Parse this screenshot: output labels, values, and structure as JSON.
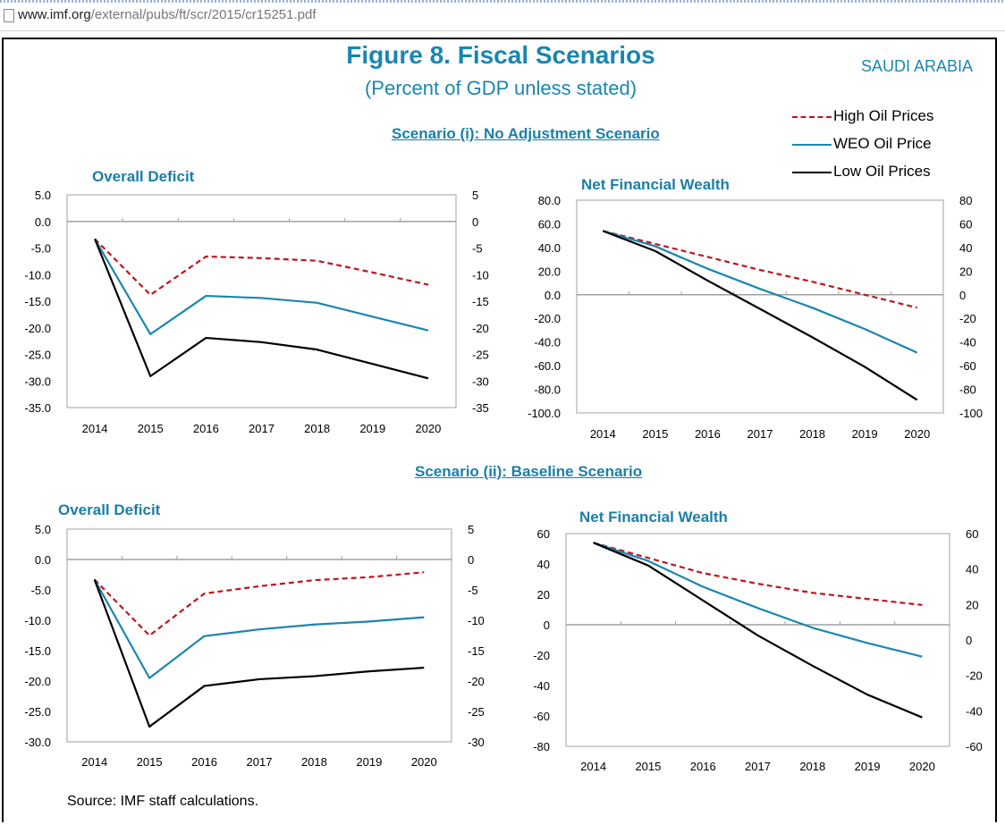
{
  "browser": {
    "url_host": "www.imf.org",
    "url_path": "/external/pubs/ft/scr/2015/cr15251.pdf"
  },
  "figure": {
    "title": "Figure 8. Fiscal Scenarios",
    "subtitle": "(Percent of GDP unless stated)",
    "country": "SAUDI ARABIA",
    "source": "Source: IMF staff calculations.",
    "scenario1_title": "Scenario (i): No Adjustment Scenario",
    "scenario2_title": "Scenario (ii):  Baseline Scenario"
  },
  "legend": [
    {
      "label": "High Oil Prices",
      "color": "#c0141c",
      "dash": true
    },
    {
      "label": "WEO Oil Price",
      "color": "#1a86b0",
      "dash": false
    },
    {
      "label": "Low Oil Prices",
      "color": "#000000",
      "dash": false
    }
  ],
  "chart_data": [
    {
      "id": "c1",
      "type": "line",
      "title": "Overall Deficit",
      "x": [
        "2014",
        "2015",
        "2016",
        "2017",
        "2018",
        "2019",
        "2020"
      ],
      "ylim": [
        -35,
        5
      ],
      "left_ticks": [
        "5.0",
        "0.0",
        "-5.0",
        "-10.0",
        "-15.0",
        "-20.0",
        "-25.0",
        "-30.0",
        "-35.0"
      ],
      "right_ticks": [
        "5",
        "0",
        "-5",
        "-10",
        "-15",
        "-20",
        "-25",
        "-30",
        "-35"
      ],
      "series": [
        {
          "name": "High Oil Prices",
          "color": "#c0141c",
          "dash": true,
          "values": [
            -3.3,
            -13.8,
            -6.6,
            -6.9,
            -7.4,
            -9.6,
            -11.9
          ]
        },
        {
          "name": "WEO Oil Price",
          "color": "#1a86b0",
          "dash": false,
          "values": [
            -3.3,
            -21.2,
            -14.0,
            -14.4,
            -15.3,
            -17.9,
            -20.5
          ]
        },
        {
          "name": "Low Oil Prices",
          "color": "#000000",
          "dash": false,
          "values": [
            -3.3,
            -29.1,
            -21.9,
            -22.7,
            -24.1,
            -26.8,
            -29.5
          ]
        }
      ]
    },
    {
      "id": "c2",
      "type": "line",
      "title": "Net Financial Wealth",
      "x": [
        "2014",
        "2015",
        "2016",
        "2017",
        "2018",
        "2019",
        "2020"
      ],
      "ylim": [
        -100,
        80
      ],
      "left_ticks": [
        "80.0",
        "60.0",
        "40.0",
        "20.0",
        "0.0",
        "-20.0",
        "-40.0",
        "-60.0",
        "-80.0",
        "-100.0"
      ],
      "right_ticks": [
        "80",
        "60",
        "40",
        "20",
        "0",
        "-20",
        "-40",
        "-60",
        "-80",
        "-100"
      ],
      "series": [
        {
          "name": "High Oil Prices",
          "color": "#c0141c",
          "dash": true,
          "values": [
            54,
            43,
            32,
            21,
            11,
            0,
            -11
          ]
        },
        {
          "name": "WEO Oil Price",
          "color": "#1a86b0",
          "dash": false,
          "values": [
            54,
            41,
            22,
            5,
            -11,
            -29,
            -49
          ]
        },
        {
          "name": "Low Oil Prices",
          "color": "#000000",
          "dash": false,
          "values": [
            54,
            37,
            12,
            -12,
            -36,
            -61,
            -89
          ]
        }
      ]
    },
    {
      "id": "c3",
      "type": "line",
      "title": "Overall Deficit",
      "x": [
        "2014",
        "2015",
        "2016",
        "2017",
        "2018",
        "2019",
        "2020"
      ],
      "ylim": [
        -30,
        5
      ],
      "left_ticks": [
        "5.0",
        "0.0",
        "-5.0",
        "-10.0",
        "-15.0",
        "-20.0",
        "-25.0",
        "-30.0"
      ],
      "right_ticks": [
        "5",
        "0",
        "-5",
        "-10",
        "-15",
        "-20",
        "-25",
        "-30"
      ],
      "series": [
        {
          "name": "High Oil Prices",
          "color": "#c0141c",
          "dash": true,
          "values": [
            -3.3,
            -12.5,
            -5.6,
            -4.4,
            -3.4,
            -2.9,
            -2.1
          ]
        },
        {
          "name": "WEO Oil Price",
          "color": "#1a86b0",
          "dash": false,
          "values": [
            -3.3,
            -19.5,
            -12.6,
            -11.5,
            -10.7,
            -10.2,
            -9.5
          ]
        },
        {
          "name": "Low Oil Prices",
          "color": "#000000",
          "dash": false,
          "values": [
            -3.3,
            -27.5,
            -20.8,
            -19.7,
            -19.2,
            -18.4,
            -17.8
          ]
        }
      ]
    },
    {
      "id": "c4",
      "type": "line",
      "title": "Net Financial Wealth",
      "x": [
        "2014",
        "2015",
        "2016",
        "2017",
        "2018",
        "2019",
        "2020"
      ],
      "ylim": [
        -80,
        60
      ],
      "left_ticks": [
        "60",
        "40",
        "20",
        "0",
        "-20",
        "-40",
        "-60",
        "-80"
      ],
      "right_ticks": [
        "60",
        "40",
        "20",
        "0",
        "-20",
        "-40",
        "-60"
      ],
      "series": [
        {
          "name": "High Oil Prices",
          "color": "#c0141c",
          "dash": true,
          "values": [
            54,
            44,
            34,
            27,
            21,
            17,
            13
          ]
        },
        {
          "name": "WEO Oil Price",
          "color": "#1a86b0",
          "dash": false,
          "values": [
            54,
            42,
            25,
            11,
            -2,
            -12,
            -21
          ]
        },
        {
          "name": "Low Oil Prices",
          "color": "#000000",
          "dash": false,
          "values": [
            54,
            39,
            16,
            -7,
            -27,
            -46,
            -61
          ]
        }
      ]
    }
  ]
}
